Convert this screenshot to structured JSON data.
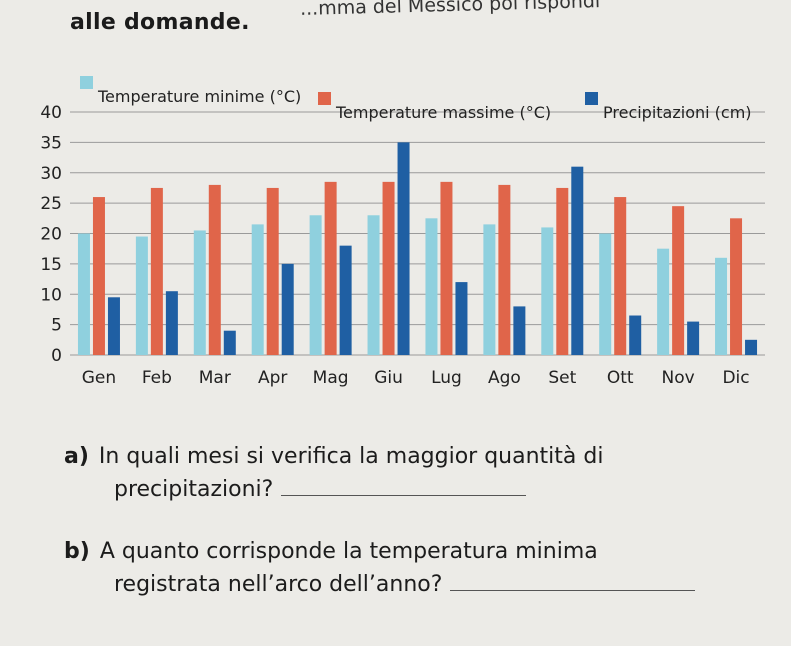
{
  "page": {
    "intro_left": "alle domande.",
    "intro_right": "...mma del Messico poi rispondi"
  },
  "chart_data": {
    "type": "bar",
    "title": "",
    "xlabel": "",
    "ylabel": "",
    "ylim": [
      0,
      40
    ],
    "yticks": [
      0,
      5,
      10,
      15,
      20,
      25,
      30,
      35,
      40
    ],
    "grid": true,
    "legend_position": "top",
    "categories": [
      "Gen",
      "Feb",
      "Mar",
      "Apr",
      "Mag",
      "Giu",
      "Lug",
      "Ago",
      "Set",
      "Ott",
      "Nov",
      "Dic"
    ],
    "series": [
      {
        "name": "Temperature minime (°C)",
        "color": "#8fd0de",
        "values": [
          20,
          19.5,
          20.5,
          21.5,
          23,
          23,
          22.5,
          21.5,
          21,
          20,
          17.5,
          16
        ]
      },
      {
        "name": "Temperature massime (°C)",
        "color": "#e0654a",
        "values": [
          26,
          27.5,
          28,
          27.5,
          28.5,
          28.5,
          28.5,
          28,
          27.5,
          26,
          24.5,
          22.5
        ]
      },
      {
        "name": "Precipitazioni (cm)",
        "color": "#1f5fa3",
        "values": [
          9.5,
          10.5,
          4,
          15,
          18,
          35,
          12,
          8,
          31,
          6.5,
          5.5,
          2.5
        ]
      }
    ]
  },
  "questions": [
    {
      "label": "a)",
      "line1": "In quali mesi si verifica la maggior quantità di",
      "line2": "precipitazioni?"
    },
    {
      "label": "b)",
      "line1": "A quanto corrisponde la temperatura minima",
      "line2": "registrata nell’arco dell’anno?"
    }
  ]
}
